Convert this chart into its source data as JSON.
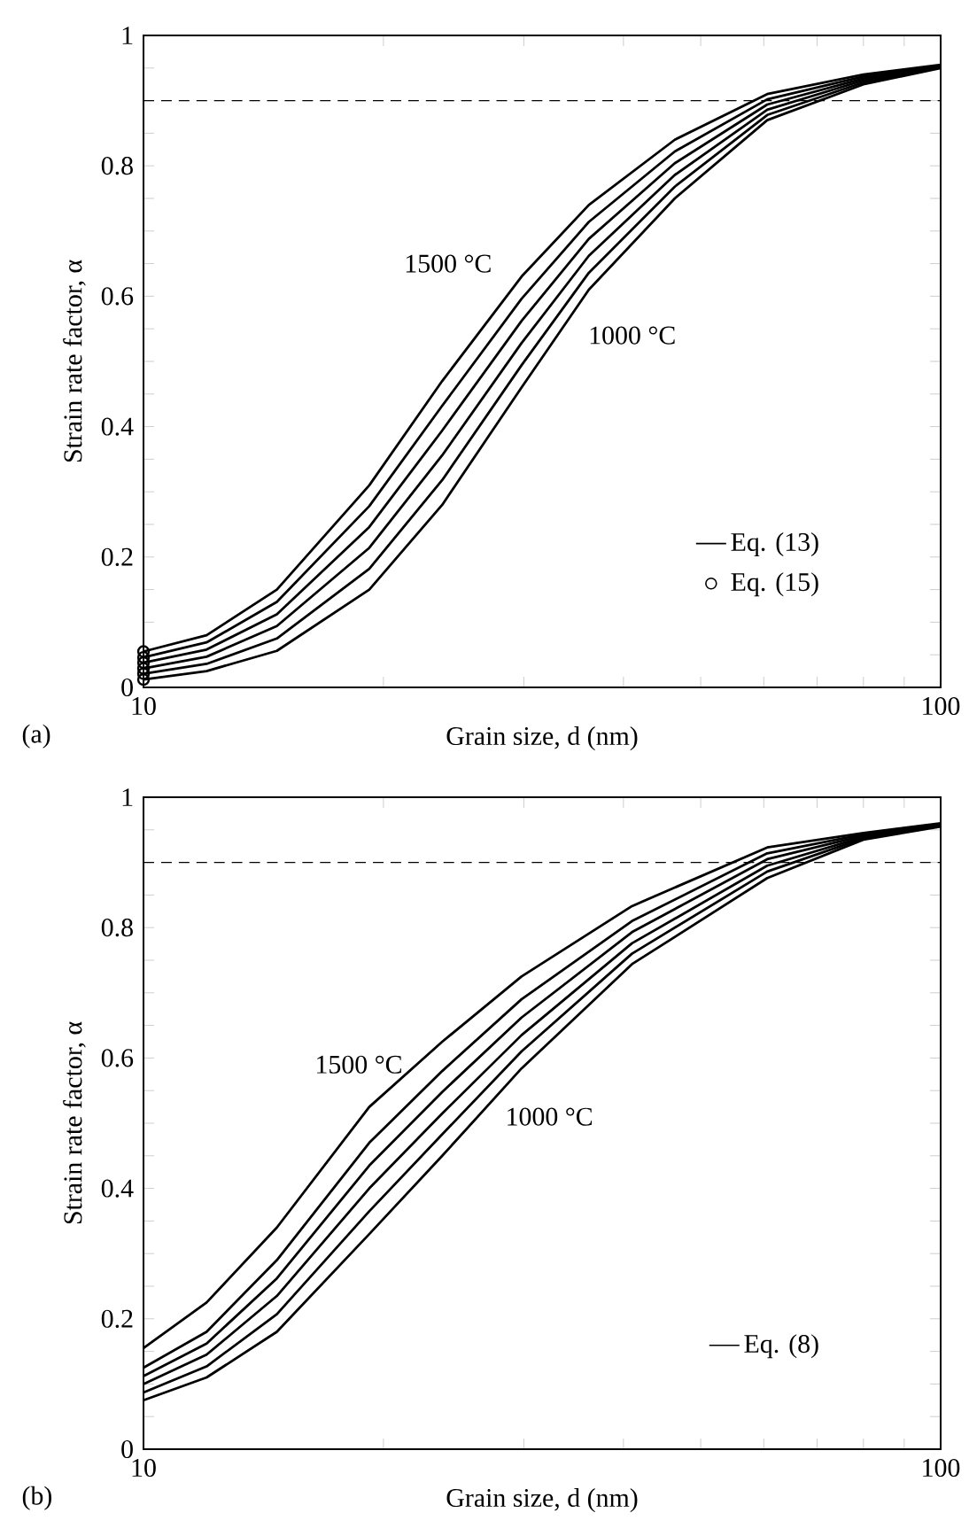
{
  "chart_data": [
    {
      "type": "line",
      "xlabel": "Grain size, d  (nm)",
      "ylabel": "Strain rate factor, α",
      "log": "x",
      "xlim": [
        10,
        100
      ],
      "ylim": [
        0,
        1
      ],
      "xticks": [
        10,
        {
          "value": 20,
          "label": null
        },
        {
          "value": 30,
          "label": null
        },
        {
          "value": 40,
          "label": null
        },
        {
          "value": 50,
          "label": null
        },
        {
          "value": 60,
          "label": null
        },
        {
          "value": 70,
          "label": null
        },
        {
          "value": 80,
          "label": null
        },
        {
          "value": 90,
          "label": null
        },
        100
      ],
      "yticks": [
        0,
        {
          "value": 0.05,
          "label": null
        },
        {
          "value": 0.1,
          "label": null
        },
        {
          "value": 0.15,
          "label": null
        },
        0.2,
        {
          "value": 0.25,
          "label": null
        },
        {
          "value": 0.3,
          "label": null
        },
        {
          "value": 0.35,
          "label": null
        },
        0.4,
        {
          "value": 0.45,
          "label": null
        },
        {
          "value": 0.5,
          "label": null
        },
        {
          "value": 0.55,
          "label": null
        },
        0.6,
        {
          "value": 0.65,
          "label": null
        },
        {
          "value": 0.7,
          "label": null
        },
        {
          "value": 0.75,
          "label": null
        },
        0.8,
        {
          "value": 0.85,
          "label": null
        },
        {
          "value": 0.9,
          "label": null
        },
        {
          "value": 0.95,
          "label": null
        },
        1
      ],
      "grid": false,
      "legend": "bottom right",
      "ref_lines": [
        {
          "axis": "y",
          "value": 0.9,
          "line_style": "dashed"
        }
      ],
      "annotations": [
        "1500 °C",
        "1000 °C",
        "(a)"
      ],
      "series": [
        {
          "name": "Eq. (13)",
          "color": "#000000",
          "marker": "none",
          "x": [
            10,
            12,
            14.7,
            19.2,
            23.7,
            29.8,
            36.2,
            46.4,
            60.6,
            80,
            100
          ],
          "values": [
            0.055,
            0.08,
            0.15,
            0.31,
            0.47,
            0.63,
            0.74,
            0.84,
            0.91,
            0.94,
            0.955
          ]
        },
        {
          "color": "#000000",
          "marker": "none",
          "x": [
            10,
            12,
            14.7,
            19.2,
            23.7,
            29.8,
            36.2,
            46.4,
            60.6,
            80,
            100
          ],
          "values": [
            0.046,
            0.069,
            0.131,
            0.278,
            0.432,
            0.596,
            0.714,
            0.822,
            0.902,
            0.937,
            0.954
          ]
        },
        {
          "color": "#000000",
          "marker": "none",
          "x": [
            10,
            12,
            14.7,
            19.2,
            23.7,
            29.8,
            36.2,
            46.4,
            60.6,
            80,
            100
          ],
          "values": [
            0.038,
            0.058,
            0.112,
            0.246,
            0.394,
            0.562,
            0.688,
            0.804,
            0.894,
            0.934,
            0.953
          ]
        },
        {
          "color": "#000000",
          "marker": "none",
          "x": [
            10,
            12,
            14.7,
            19.2,
            23.7,
            29.8,
            36.2,
            46.4,
            60.6,
            80,
            100
          ],
          "values": [
            0.029,
            0.047,
            0.094,
            0.214,
            0.356,
            0.528,
            0.662,
            0.786,
            0.886,
            0.931,
            0.952
          ]
        },
        {
          "color": "#000000",
          "marker": "none",
          "x": [
            10,
            12,
            14.7,
            19.2,
            23.7,
            29.8,
            36.2,
            46.4,
            60.6,
            80,
            100
          ],
          "values": [
            0.021,
            0.036,
            0.075,
            0.182,
            0.318,
            0.494,
            0.636,
            0.768,
            0.878,
            0.928,
            0.951
          ]
        },
        {
          "color": "#000000",
          "marker": "none",
          "x": [
            10,
            12,
            14.7,
            19.2,
            23.7,
            29.8,
            36.2,
            46.4,
            60.6,
            80,
            100
          ],
          "values": [
            0.012,
            0.025,
            0.056,
            0.15,
            0.28,
            0.46,
            0.61,
            0.75,
            0.87,
            0.925,
            0.95
          ]
        },
        {
          "name": "Eq. (15)",
          "type": "scatter",
          "color": "#000000",
          "marker": "circle",
          "x": [
            10,
            10,
            10,
            10,
            10,
            10
          ],
          "values": [
            0.055,
            0.046,
            0.038,
            0.029,
            0.021,
            0.012
          ]
        }
      ]
    },
    {
      "type": "line",
      "xlabel": "Grain size, d (nm)",
      "ylabel": "Strain rate factor, α",
      "log": "x",
      "xlim": [
        10,
        100
      ],
      "ylim": [
        0,
        1
      ],
      "xticks": [
        10,
        {
          "value": 20,
          "label": null
        },
        {
          "value": 30,
          "label": null
        },
        {
          "value": 40,
          "label": null
        },
        {
          "value": 50,
          "label": null
        },
        {
          "value": 60,
          "label": null
        },
        {
          "value": 70,
          "label": null
        },
        {
          "value": 80,
          "label": null
        },
        {
          "value": 90,
          "label": null
        },
        100
      ],
      "yticks": [
        0,
        {
          "value": 0.05,
          "label": null
        },
        {
          "value": 0.1,
          "label": null
        },
        {
          "value": 0.15,
          "label": null
        },
        0.2,
        {
          "value": 0.25,
          "label": null
        },
        {
          "value": 0.3,
          "label": null
        },
        {
          "value": 0.35,
          "label": null
        },
        0.4,
        {
          "value": 0.45,
          "label": null
        },
        {
          "value": 0.5,
          "label": null
        },
        {
          "value": 0.55,
          "label": null
        },
        0.6,
        {
          "value": 0.65,
          "label": null
        },
        {
          "value": 0.7,
          "label": null
        },
        {
          "value": 0.75,
          "label": null
        },
        0.8,
        {
          "value": 0.85,
          "label": null
        },
        {
          "value": 0.9,
          "label": null
        },
        {
          "value": 0.95,
          "label": null
        },
        1
      ],
      "grid": false,
      "legend": "bottom right",
      "ref_lines": [
        {
          "axis": "y",
          "value": 0.9,
          "line_style": "dashed"
        }
      ],
      "annotations": [
        "1500 °C",
        "1000 °C",
        "(b)"
      ],
      "series": [
        {
          "name": "Eq. (8)",
          "color": "#000000",
          "marker": "none",
          "x": [
            10,
            12,
            14.7,
            19.2,
            23.7,
            29.8,
            41,
            60.6,
            80,
            100
          ],
          "values": [
            0.155,
            0.225,
            0.34,
            0.525,
            0.625,
            0.725,
            0.833,
            0.923,
            0.945,
            0.96
          ]
        },
        {
          "color": "#000000",
          "marker": "none",
          "x": [
            10,
            12,
            14.7,
            19.2,
            23.7,
            29.8,
            41,
            60.6,
            80,
            100
          ],
          "values": [
            0.125,
            0.18,
            0.29,
            0.47,
            0.58,
            0.69,
            0.81,
            0.914,
            0.943,
            0.959
          ]
        },
        {
          "color": "#000000",
          "marker": "none",
          "x": [
            10,
            12,
            14.7,
            19.2,
            23.7,
            29.8,
            41,
            60.6,
            80,
            100
          ],
          "values": [
            0.112,
            0.162,
            0.262,
            0.435,
            0.548,
            0.662,
            0.793,
            0.905,
            0.941,
            0.958
          ]
        },
        {
          "color": "#000000",
          "marker": "none",
          "x": [
            10,
            12,
            14.7,
            19.2,
            23.7,
            29.8,
            41,
            60.6,
            80,
            100
          ],
          "values": [
            0.1,
            0.145,
            0.235,
            0.4,
            0.515,
            0.635,
            0.776,
            0.895,
            0.939,
            0.957
          ]
        },
        {
          "color": "#000000",
          "marker": "none",
          "x": [
            10,
            12,
            14.7,
            19.2,
            23.7,
            29.8,
            41,
            60.6,
            80,
            100
          ],
          "values": [
            0.087,
            0.127,
            0.207,
            0.365,
            0.483,
            0.61,
            0.76,
            0.886,
            0.937,
            0.956
          ]
        },
        {
          "color": "#000000",
          "marker": "none",
          "x": [
            10,
            12,
            14.7,
            19.2,
            23.7,
            29.8,
            41,
            60.6,
            80,
            100
          ],
          "values": [
            0.075,
            0.11,
            0.18,
            0.33,
            0.45,
            0.584,
            0.744,
            0.876,
            0.935,
            0.955
          ]
        }
      ]
    }
  ]
}
